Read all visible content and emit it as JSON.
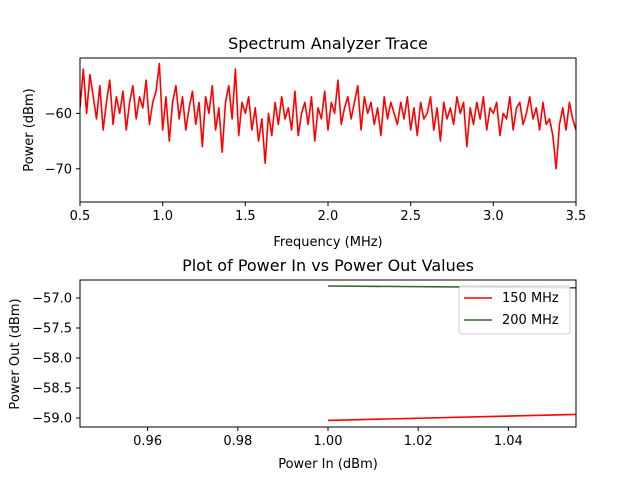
{
  "chart_data": [
    {
      "type": "line",
      "title": "Spectrum Analyzer Trace",
      "xlabel": "Frequency (MHz)",
      "ylabel": "Power (dBm)",
      "xlim": [
        0.5,
        3.5
      ],
      "ylim": [
        -76,
        -50
      ],
      "xticks": [
        0.5,
        1.0,
        1.5,
        2.0,
        2.5,
        3.0,
        3.5
      ],
      "xtick_labels": [
        "0.5",
        "1.0",
        "1.5",
        "2.0",
        "2.5",
        "3.0",
        "3.5"
      ],
      "yticks": [
        -70,
        -60
      ],
      "ytick_labels": [
        "−70",
        "−60"
      ],
      "grid": false,
      "series": [
        {
          "color": "#ff0000",
          "x": [
            0.5,
            0.52,
            0.54,
            0.56,
            0.58,
            0.6,
            0.62,
            0.64,
            0.66,
            0.68,
            0.7,
            0.72,
            0.74,
            0.76,
            0.78,
            0.8,
            0.82,
            0.84,
            0.86,
            0.88,
            0.9,
            0.92,
            0.94,
            0.96,
            0.98,
            1.0,
            1.02,
            1.04,
            1.06,
            1.08,
            1.1,
            1.12,
            1.14,
            1.16,
            1.18,
            1.2,
            1.22,
            1.24,
            1.26,
            1.28,
            1.3,
            1.32,
            1.34,
            1.36,
            1.38,
            1.4,
            1.42,
            1.44,
            1.46,
            1.48,
            1.5,
            1.52,
            1.54,
            1.56,
            1.58,
            1.6,
            1.62,
            1.64,
            1.66,
            1.68,
            1.7,
            1.72,
            1.74,
            1.76,
            1.78,
            1.8,
            1.82,
            1.84,
            1.86,
            1.88,
            1.9,
            1.92,
            1.94,
            1.96,
            1.98,
            2.0,
            2.02,
            2.04,
            2.06,
            2.08,
            2.1,
            2.12,
            2.14,
            2.16,
            2.18,
            2.2,
            2.22,
            2.24,
            2.26,
            2.28,
            2.3,
            2.32,
            2.34,
            2.36,
            2.38,
            2.4,
            2.42,
            2.44,
            2.46,
            2.48,
            2.5,
            2.52,
            2.54,
            2.56,
            2.58,
            2.6,
            2.62,
            2.64,
            2.66,
            2.68,
            2.7,
            2.72,
            2.74,
            2.76,
            2.78,
            2.8,
            2.82,
            2.84,
            2.86,
            2.88,
            2.9,
            2.92,
            2.94,
            2.96,
            2.98,
            3.0,
            3.02,
            3.04,
            3.06,
            3.08,
            3.1,
            3.12,
            3.14,
            3.16,
            3.18,
            3.2,
            3.22,
            3.24,
            3.26,
            3.28,
            3.3,
            3.32,
            3.34,
            3.36,
            3.38,
            3.4,
            3.42,
            3.44,
            3.46,
            3.48,
            3.5
          ],
          "values": [
            -59,
            -52,
            -60,
            -53,
            -57,
            -61,
            -55,
            -63,
            -58,
            -54,
            -62,
            -57,
            -60,
            -56,
            -63,
            -58,
            -55,
            -61,
            -57,
            -59,
            -54,
            -62,
            -58,
            -56,
            -51,
            -63,
            -57,
            -65,
            -58,
            -55,
            -61,
            -57,
            -63,
            -59,
            -56,
            -62,
            -58,
            -66,
            -57,
            -60,
            -55,
            -63,
            -59,
            -67,
            -58,
            -55,
            -61,
            -52,
            -64,
            -58,
            -60,
            -57,
            -63,
            -59,
            -65,
            -61,
            -69,
            -60,
            -64,
            -58,
            -62,
            -57,
            -61,
            -59,
            -63,
            -56,
            -64,
            -60,
            -58,
            -62,
            -57,
            -65,
            -59,
            -61,
            -56,
            -63,
            -58,
            -60,
            -54,
            -62,
            -59,
            -57,
            -61,
            -58,
            -55,
            -63,
            -57,
            -60,
            -58,
            -62,
            -59,
            -64,
            -57,
            -61,
            -58,
            -60,
            -62,
            -58,
            -61,
            -57,
            -63,
            -59,
            -64,
            -58,
            -61,
            -60,
            -57,
            -63,
            -59,
            -65,
            -58,
            -61,
            -59,
            -62,
            -57,
            -60,
            -58,
            -66,
            -59,
            -62,
            -58,
            -61,
            -57,
            -63,
            -59,
            -60,
            -58,
            -64,
            -60,
            -61,
            -57,
            -63,
            -59,
            -58,
            -62,
            -60,
            -57,
            -61,
            -59,
            -63,
            -58,
            -62,
            -61,
            -64,
            -70,
            -62,
            -59,
            -63,
            -58,
            -61,
            -63
          ]
        }
      ]
    },
    {
      "type": "line",
      "title": "Plot of Power In vs Power Out Values",
      "xlabel": "Power In (dBm)",
      "ylabel": "Power Out (dBm)",
      "xlim": [
        0.945,
        1.055
      ],
      "ylim": [
        -59.15,
        -56.7
      ],
      "xticks": [
        0.96,
        0.98,
        1.0,
        1.02,
        1.04
      ],
      "xtick_labels": [
        "0.96",
        "0.98",
        "1.00",
        "1.02",
        "1.04"
      ],
      "yticks": [
        -57.0,
        -57.5,
        -58.0,
        -58.5,
        -59.0
      ],
      "ytick_labels": [
        "−57.0",
        "−57.5",
        "−58.0",
        "−58.5",
        "−59.0"
      ],
      "grid": false,
      "legend": "top-right",
      "series": [
        {
          "name": "150 MHz",
          "color": "#ff0000",
          "x": [
            1.0,
            1.055
          ],
          "values": [
            -59.04,
            -58.94
          ]
        },
        {
          "name": "200 MHz",
          "color": "#336633",
          "x": [
            1.0,
            1.055
          ],
          "values": [
            -56.8,
            -56.83
          ]
        }
      ]
    }
  ]
}
